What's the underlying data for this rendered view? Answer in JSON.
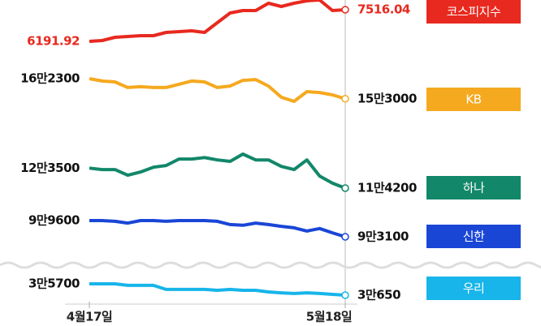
{
  "chart_data": {
    "type": "line",
    "x": [
      "4월17일",
      null,
      null,
      null,
      null,
      null,
      null,
      null,
      null,
      null,
      null,
      null,
      null,
      null,
      null,
      null,
      null,
      null,
      null,
      null,
      "5월18일"
    ],
    "series": [
      {
        "name": "코스피지수",
        "color": "#e8291f",
        "values": [
          6191.92,
          6226,
          6362,
          6396,
          6430,
          6430,
          6565,
          6599,
          6633,
          6565,
          6973,
          7380,
          7482,
          7482,
          7788,
          7652,
          7788,
          7890,
          7924,
          7482,
          7516.04
        ]
      },
      {
        "name": "KB",
        "color": "#f5a91f",
        "values": [
          162300,
          161200,
          160800,
          158200,
          158600,
          158200,
          158200,
          159700,
          161200,
          160800,
          158200,
          158900,
          161500,
          161900,
          158900,
          153700,
          151800,
          156300,
          155900,
          154800,
          153000
        ],
        "value_labels": [
          "16만2300",
          null,
          null,
          null,
          null,
          null,
          null,
          null,
          null,
          null,
          null,
          null,
          null,
          null,
          null,
          null,
          null,
          null,
          null,
          null,
          "15만3000"
        ]
      },
      {
        "name": "하나",
        "color": "#12876a",
        "values": [
          123500,
          122800,
          122800,
          120200,
          121700,
          123900,
          124700,
          127700,
          127700,
          128400,
          127300,
          126600,
          130000,
          127300,
          127300,
          124300,
          122800,
          127300,
          119800,
          116500,
          114200
        ],
        "value_labels": [
          "12만3500",
          null,
          null,
          null,
          null,
          null,
          null,
          null,
          null,
          null,
          null,
          null,
          null,
          null,
          null,
          null,
          null,
          null,
          null,
          null,
          "11만4200"
        ]
      },
      {
        "name": "신한",
        "color": "#1a46d6",
        "values": [
          99600,
          99600,
          99300,
          98600,
          99600,
          99600,
          99300,
          99600,
          99600,
          99600,
          99300,
          98000,
          97700,
          98600,
          98000,
          97300,
          96700,
          95400,
          96400,
          94700,
          93100
        ],
        "value_labels": [
          "9만9600",
          null,
          null,
          null,
          null,
          null,
          null,
          null,
          null,
          null,
          null,
          null,
          null,
          null,
          null,
          null,
          null,
          null,
          null,
          null,
          "9만3100"
        ]
      },
      {
        "name": "우리",
        "color": "#17b5ea",
        "values": [
          35700,
          35700,
          35700,
          35000,
          35000,
          35000,
          33200,
          33200,
          33200,
          33200,
          32800,
          33200,
          32800,
          32800,
          32100,
          31700,
          31400,
          31700,
          31400,
          31000,
          30650
        ],
        "value_labels": [
          "3만5700",
          null,
          null,
          null,
          null,
          null,
          null,
          null,
          null,
          null,
          null,
          null,
          null,
          null,
          null,
          null,
          null,
          null,
          null,
          null,
          "3만650"
        ]
      }
    ]
  }
}
